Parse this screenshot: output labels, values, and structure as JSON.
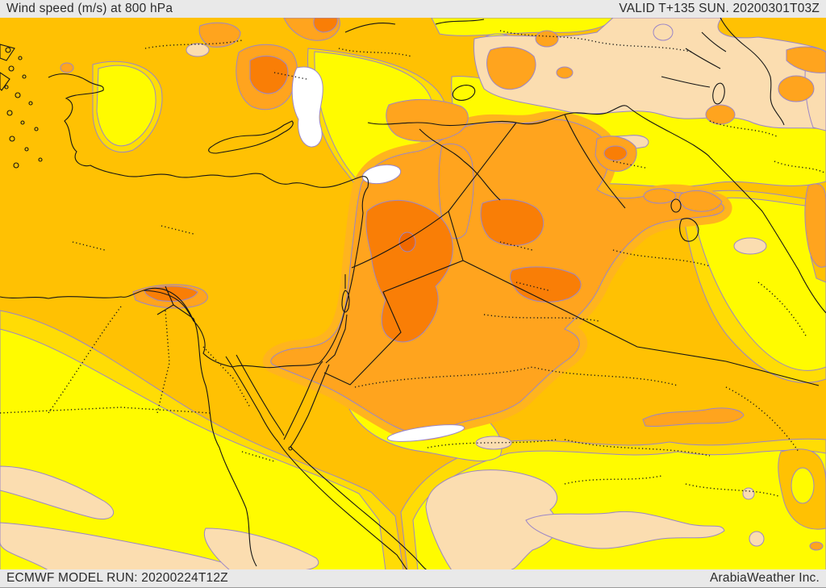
{
  "header": {
    "title": "Wind speed (m/s) at 800 hPa",
    "valid": "VALID T+135 SUN. 20200301T03Z"
  },
  "footer": {
    "model_run": "ECMWF MODEL RUN: 20200224T12Z",
    "credit": "ArabiaWeather Inc."
  },
  "map": {
    "region": "Middle East",
    "palette": {
      "calm_white": "#ffffff",
      "level_peach": "#fbddb0",
      "level_yellow": "#fffb00",
      "level_yellow_gold": "#ffdc05",
      "level_gold": "#ffc103",
      "level_amber": "#ffb41e",
      "level_orange": "#ffa41e",
      "level_deep_orange": "#f97e06",
      "level_red_orange": "#f06800",
      "contour_line": "#9b86c8",
      "geo_line": "#141414",
      "header_bg": "#e9e9e9",
      "header_text": "#2b2b2b"
    }
  }
}
